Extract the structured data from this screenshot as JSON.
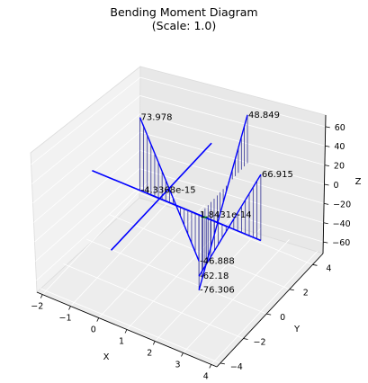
{
  "chart_data": {
    "type": "line",
    "title": "Bending Moment Diagram",
    "subtitle": "(Scale: 1.0)",
    "xlabel": "X",
    "ylabel": "Y",
    "zlabel": "Z",
    "x_ticks": [
      "−2",
      "−1",
      "0",
      "1",
      "2",
      "3",
      "4"
    ],
    "y_ticks": [
      "−4",
      "−2",
      "0",
      "2",
      "4"
    ],
    "z_ticks": [
      "60",
      "40",
      "20",
      "0",
      "−20",
      "−40",
      "−60"
    ],
    "xlim": [
      -2.2,
      4.2
    ],
    "ylim": [
      -4.3,
      4.9
    ],
    "zlim": [
      -72,
      72
    ],
    "grid": true,
    "colors": {
      "member": "#0000ff",
      "moment": "#0000ff",
      "hatch": "#1a1a8c",
      "axis_line": "#000000",
      "support": "#00aa00"
    },
    "members": [
      {
        "start": [
          0,
          0,
          0
        ],
        "end": [
          2.8,
          0,
          0
        ]
      },
      {
        "start": [
          -2,
          0,
          0
        ],
        "end": [
          4,
          0,
          0
        ]
      },
      {
        "start": [
          0.4,
          4.5,
          0
        ],
        "end": [
          0.4,
          -4.2,
          0
        ]
      }
    ],
    "moment_profiles": [
      {
        "base_start": [
          -0.3,
          0,
          0
        ],
        "base_end": [
          1.8,
          0,
          0
        ],
        "values_start": 73.978,
        "values_end": -46.888
      },
      {
        "base_start": [
          1.8,
          0,
          0
        ],
        "base_end": [
          4.0,
          0,
          0
        ],
        "values_start": -62.18,
        "values_end": 66.915
      },
      {
        "base_start": [
          1.8,
          0,
          0
        ],
        "base_end": [
          1.8,
          4.2,
          0
        ],
        "values_start": -76.306,
        "values_end": 48.849
      }
    ],
    "annotations": [
      {
        "text": "48.849"
      },
      {
        "text": "73.978"
      },
      {
        "text": "66.915"
      },
      {
        "text": "-4.3368e-15"
      },
      {
        "text": "1.8431e-14"
      },
      {
        "text": "-46.888"
      },
      {
        "text": "-62.18"
      },
      {
        "text": "-76.306"
      }
    ]
  }
}
